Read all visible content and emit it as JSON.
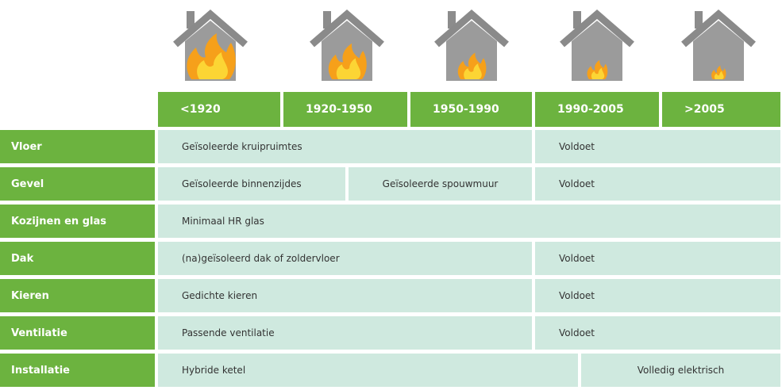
{
  "header": {
    "periods": [
      "<1920",
      "1920-1950",
      "1950-1990",
      "1990-2005",
      ">2005"
    ]
  },
  "table": {
    "rows": [
      {
        "label": "Vloer",
        "cells": [
          "Geïsoleerde kruipruimtes",
          "Voldoet"
        ]
      },
      {
        "label": "Gevel",
        "cells": [
          "Geïsoleerde binnenzijdes",
          "Geïsoleerde spouwmuur",
          "Voldoet"
        ]
      },
      {
        "label": "Kozijnen en glas",
        "cells": [
          "Minimaal HR glas"
        ]
      },
      {
        "label": "Dak",
        "cells": [
          "(na)geïsoleerd dak of zoldervloer",
          "Voldoet"
        ]
      },
      {
        "label": "Kieren",
        "cells": [
          "Gedichte kieren",
          "Voldoet"
        ]
      },
      {
        "label": "Ventilatie",
        "cells": [
          "Passende ventilatie",
          "Voldoet"
        ]
      },
      {
        "label": "Installatie",
        "cells": [
          "Hybride ketel",
          "Volledig elektrisch"
        ]
      }
    ]
  }
}
